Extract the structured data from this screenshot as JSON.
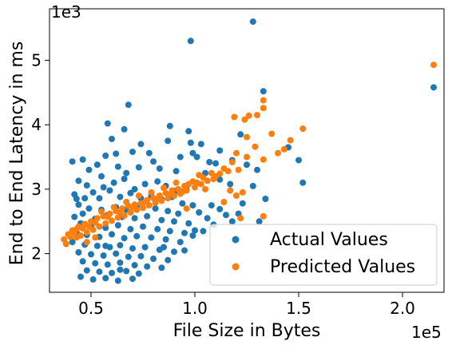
{
  "chart_data": {
    "type": "scatter",
    "title": "",
    "xlabel": "File Size in Bytes",
    "ylabel": "End to End Latency in ms",
    "x_offset_label": "1e5",
    "y_offset_label": "1e3",
    "xlim": [
      30000,
      220000
    ],
    "ylim": [
      1400,
      5800
    ],
    "x_ticks": [
      {
        "value": 50000,
        "label": "0.5"
      },
      {
        "value": 100000,
        "label": "1.0"
      },
      {
        "value": 150000,
        "label": "1.5"
      },
      {
        "value": 200000,
        "label": "2.0"
      }
    ],
    "y_ticks": [
      {
        "value": 2000,
        "label": "2"
      },
      {
        "value": 3000,
        "label": "3"
      },
      {
        "value": 4000,
        "label": "4"
      },
      {
        "value": 5000,
        "label": "5"
      }
    ],
    "grid": false,
    "legend_position": "lower-right",
    "series": [
      {
        "name": "Actual Values",
        "color": "#1f77b4",
        "points": [
          [
            128000,
            5600
          ],
          [
            98000,
            5300
          ],
          [
            215000,
            4580
          ],
          [
            133000,
            4520
          ],
          [
            68000,
            4310
          ],
          [
            58000,
            4020
          ],
          [
            88000,
            3980
          ],
          [
            66000,
            3930
          ],
          [
            97000,
            3900
          ],
          [
            122000,
            3850
          ],
          [
            60000,
            3780
          ],
          [
            87000,
            3750
          ],
          [
            98000,
            3720
          ],
          [
            103000,
            3700
          ],
          [
            145000,
            3650
          ],
          [
            112000,
            3600
          ],
          [
            70000,
            3580
          ],
          [
            78000,
            3560
          ],
          [
            57000,
            3520
          ],
          [
            93000,
            3500
          ],
          [
            101000,
            3500
          ],
          [
            107000,
            3420
          ],
          [
            118000,
            3450
          ],
          [
            125000,
            3380
          ],
          [
            150000,
            3450
          ],
          [
            41000,
            3430
          ],
          [
            46000,
            3460
          ],
          [
            53000,
            3380
          ],
          [
            63000,
            3350
          ],
          [
            73000,
            3340
          ],
          [
            83000,
            3320
          ],
          [
            105000,
            3250
          ],
          [
            130000,
            3300
          ],
          [
            112000,
            3150
          ],
          [
            44000,
            3130
          ],
          [
            48000,
            3060
          ],
          [
            56000,
            3030
          ],
          [
            61000,
            3100
          ],
          [
            66000,
            3160
          ],
          [
            71000,
            3000
          ],
          [
            76000,
            3080
          ],
          [
            86000,
            3050
          ],
          [
            91000,
            2980
          ],
          [
            96000,
            3000
          ],
          [
            117000,
            3080
          ],
          [
            128000,
            3050
          ],
          [
            42000,
            2920
          ],
          [
            47000,
            2860
          ],
          [
            51000,
            2950
          ],
          [
            54000,
            2860
          ],
          [
            59000,
            2980
          ],
          [
            64000,
            2880
          ],
          [
            69000,
            2940
          ],
          [
            74000,
            2860
          ],
          [
            79000,
            2900
          ],
          [
            84000,
            2840
          ],
          [
            89000,
            2880
          ],
          [
            94000,
            2780
          ],
          [
            99000,
            2750
          ],
          [
            108000,
            2750
          ],
          [
            123000,
            2780
          ],
          [
            134000,
            2850
          ],
          [
            152000,
            3100
          ],
          [
            44000,
            2760
          ],
          [
            49000,
            2700
          ],
          [
            55000,
            2680
          ],
          [
            62000,
            2720
          ],
          [
            67000,
            2680
          ],
          [
            72000,
            2740
          ],
          [
            81000,
            2700
          ],
          [
            87000,
            2660
          ],
          [
            92000,
            2620
          ],
          [
            102000,
            2640
          ],
          [
            112000,
            2690
          ],
          [
            121000,
            2620
          ],
          [
            42000,
            2570
          ],
          [
            46000,
            2620
          ],
          [
            52000,
            2540
          ],
          [
            58000,
            2600
          ],
          [
            65000,
            2570
          ],
          [
            71000,
            2550
          ],
          [
            77000,
            2580
          ],
          [
            84000,
            2520
          ],
          [
            90000,
            2500
          ],
          [
            97000,
            2470
          ],
          [
            106000,
            2550
          ],
          [
            131000,
            2500
          ],
          [
            45000,
            2470
          ],
          [
            50000,
            2420
          ],
          [
            57000,
            2400
          ],
          [
            63000,
            2440
          ],
          [
            69000,
            2380
          ],
          [
            75000,
            2420
          ],
          [
            82000,
            2380
          ],
          [
            88000,
            2350
          ],
          [
            95000,
            2320
          ],
          [
            100000,
            2360
          ],
          [
            43000,
            2330
          ],
          [
            48000,
            2290
          ],
          [
            54000,
            2260
          ],
          [
            60000,
            2300
          ],
          [
            66000,
            2240
          ],
          [
            72000,
            2270
          ],
          [
            79000,
            2250
          ],
          [
            86000,
            2220
          ],
          [
            93000,
            2180
          ],
          [
            41000,
            2180
          ],
          [
            47000,
            2140
          ],
          [
            53000,
            2120
          ],
          [
            59000,
            2100
          ],
          [
            64000,
            2130
          ],
          [
            70000,
            2080
          ],
          [
            76000,
            2100
          ],
          [
            83000,
            2060
          ],
          [
            90000,
            2030
          ],
          [
            44000,
            2020
          ],
          [
            50000,
            1990
          ],
          [
            56000,
            1970
          ],
          [
            62000,
            2000
          ],
          [
            68000,
            1950
          ],
          [
            74000,
            1960
          ],
          [
            80000,
            1920
          ],
          [
            87000,
            1900
          ],
          [
            46000,
            1880
          ],
          [
            52000,
            1850
          ],
          [
            58000,
            1830
          ],
          [
            64000,
            1860
          ],
          [
            71000,
            1820
          ],
          [
            77000,
            1800
          ],
          [
            84000,
            1780
          ],
          [
            48000,
            1740
          ],
          [
            54000,
            1720
          ],
          [
            60000,
            1700
          ],
          [
            67000,
            1730
          ],
          [
            73000,
            1690
          ],
          [
            45000,
            1640
          ],
          [
            51000,
            1600
          ],
          [
            57000,
            1620
          ],
          [
            63000,
            1580
          ],
          [
            70000,
            1610
          ],
          [
            64000,
            1750
          ],
          [
            55000,
            3200
          ],
          [
            74000,
            3700
          ],
          [
            62000,
            3550
          ],
          [
            85000,
            2100
          ],
          [
            95000,
            2050
          ],
          [
            99000,
            2280
          ],
          [
            104000,
            2350
          ],
          [
            109000,
            2450
          ],
          [
            115000,
            2600
          ],
          [
            118000,
            2500
          ],
          [
            80000,
            3430
          ],
          [
            67000,
            3250
          ],
          [
            43000,
            2850
          ],
          [
            49000,
            3300
          ],
          [
            99000,
            3560
          ],
          [
            110000,
            3400
          ],
          [
            57000,
            2120
          ],
          [
            82000,
            3120
          ],
          [
            91000,
            3280
          ]
        ]
      },
      {
        "name": "Predicted Values",
        "color": "#ff7f0e",
        "points": [
          [
            215000,
            4930
          ],
          [
            133000,
            4380
          ],
          [
            133000,
            4260
          ],
          [
            126000,
            4140
          ],
          [
            119000,
            4120
          ],
          [
            124000,
            4080
          ],
          [
            130000,
            4150
          ],
          [
            152000,
            3940
          ],
          [
            137000,
            3860
          ],
          [
            125000,
            3810
          ],
          [
            146000,
            3760
          ],
          [
            129000,
            3660
          ],
          [
            143000,
            3620
          ],
          [
            140000,
            3560
          ],
          [
            120000,
            3560
          ],
          [
            125000,
            3500
          ],
          [
            133000,
            3460
          ],
          [
            118000,
            3420
          ],
          [
            114000,
            3320
          ],
          [
            121000,
            3300
          ],
          [
            108000,
            3250
          ],
          [
            112000,
            3240
          ],
          [
            104000,
            3180
          ],
          [
            99000,
            3120
          ],
          [
            110000,
            3200
          ],
          [
            101000,
            3100
          ],
          [
            95000,
            3050
          ],
          [
            97000,
            3080
          ],
          [
            92000,
            3000
          ],
          [
            89000,
            2980
          ],
          [
            94000,
            2960
          ],
          [
            86000,
            2940
          ],
          [
            83000,
            2900
          ],
          [
            88000,
            2920
          ],
          [
            80000,
            2860
          ],
          [
            77000,
            2830
          ],
          [
            82000,
            2850
          ],
          [
            74000,
            2780
          ],
          [
            71000,
            2760
          ],
          [
            76000,
            2800
          ],
          [
            68000,
            2740
          ],
          [
            65000,
            2700
          ],
          [
            70000,
            2720
          ],
          [
            62000,
            2660
          ],
          [
            59000,
            2620
          ],
          [
            64000,
            2640
          ],
          [
            56000,
            2580
          ],
          [
            53000,
            2550
          ],
          [
            58000,
            2570
          ],
          [
            50000,
            2500
          ],
          [
            47000,
            2460
          ],
          [
            52000,
            2480
          ],
          [
            44000,
            2420
          ],
          [
            41000,
            2360
          ],
          [
            46000,
            2390
          ],
          [
            39000,
            2300
          ],
          [
            42000,
            2330
          ],
          [
            37000,
            2220
          ],
          [
            40000,
            2260
          ],
          [
            43000,
            2250
          ],
          [
            45000,
            2280
          ],
          [
            48000,
            2330
          ],
          [
            51000,
            2370
          ],
          [
            54000,
            2420
          ],
          [
            57000,
            2470
          ],
          [
            60000,
            2510
          ],
          [
            63000,
            2560
          ],
          [
            66000,
            2590
          ],
          [
            69000,
            2640
          ],
          [
            72000,
            2680
          ],
          [
            75000,
            2710
          ],
          [
            78000,
            2750
          ],
          [
            81000,
            2790
          ],
          [
            84000,
            2820
          ],
          [
            87000,
            2860
          ],
          [
            90000,
            2900
          ],
          [
            93000,
            2930
          ],
          [
            96000,
            2980
          ],
          [
            100000,
            3030
          ],
          [
            103000,
            3080
          ],
          [
            106000,
            3130
          ],
          [
            109000,
            3160
          ],
          [
            116000,
            3280
          ],
          [
            123000,
            2950
          ],
          [
            117000,
            2980
          ],
          [
            120000,
            2900
          ],
          [
            96000,
            2700
          ],
          [
            114000,
            2800
          ],
          [
            122000,
            2550
          ],
          [
            133000,
            2580
          ],
          [
            102000,
            3220
          ],
          [
            105000,
            3000
          ],
          [
            55000,
            2650
          ],
          [
            61000,
            2720
          ],
          [
            67000,
            2800
          ],
          [
            73000,
            2900
          ],
          [
            79000,
            2950
          ],
          [
            85000,
            3020
          ],
          [
            91000,
            3100
          ],
          [
            49000,
            2420
          ],
          [
            43000,
            2380
          ],
          [
            38000,
            2150
          ],
          [
            48000,
            2180
          ],
          [
            52000,
            2250
          ]
        ]
      }
    ]
  }
}
